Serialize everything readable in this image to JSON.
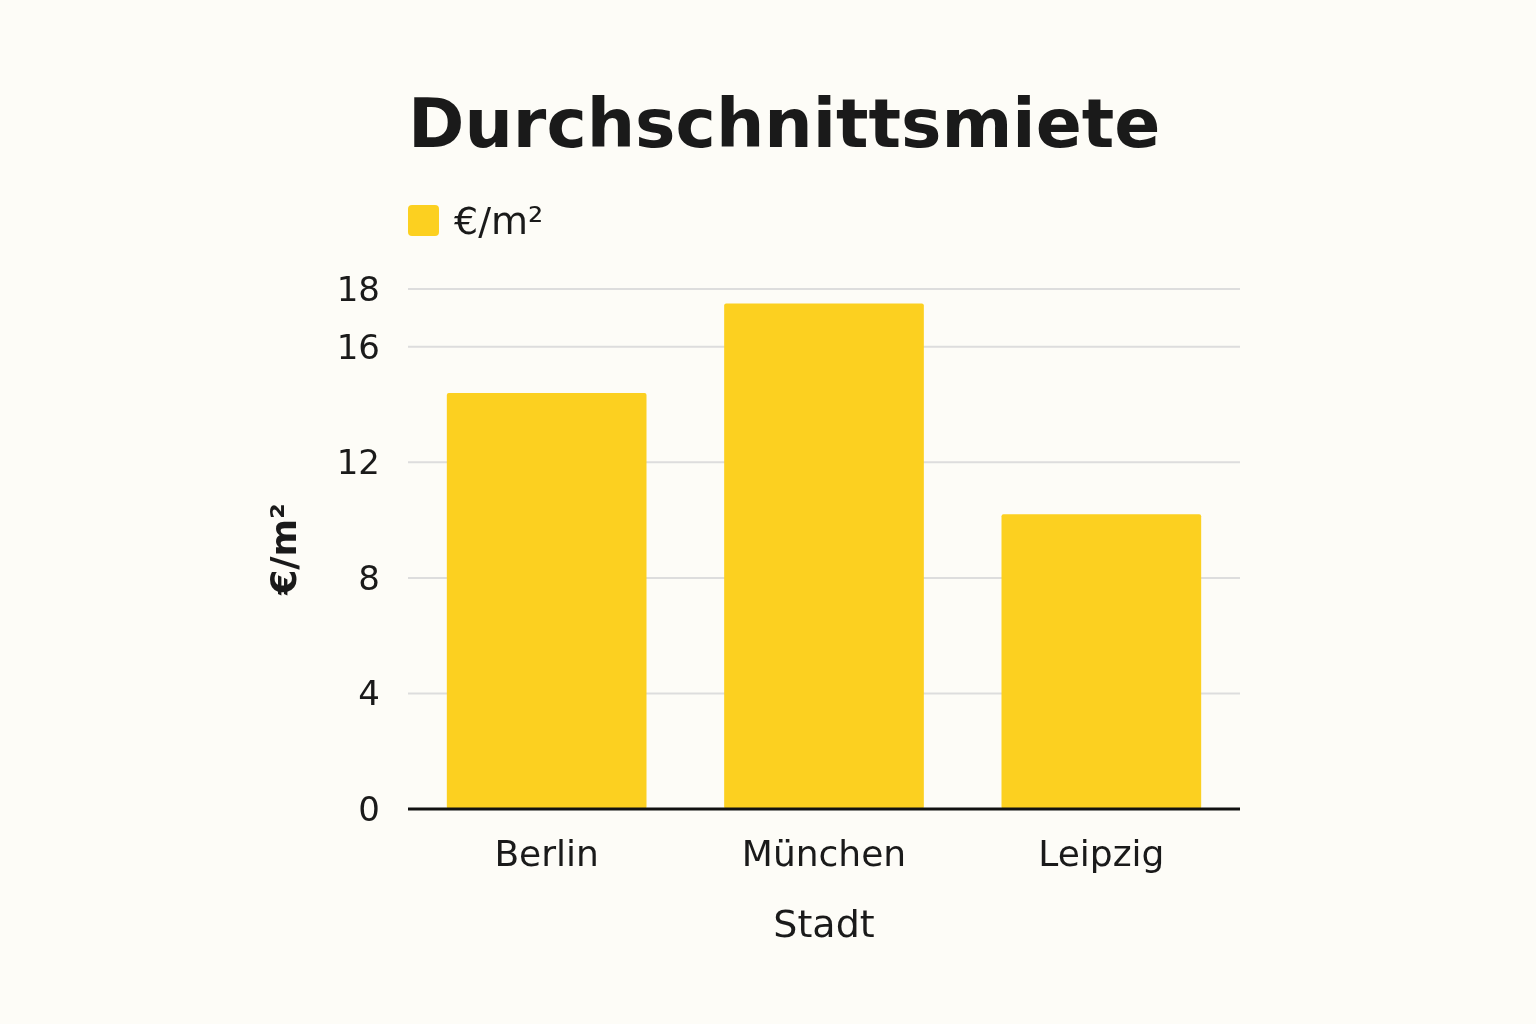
{
  "chart_data": {
    "type": "bar",
    "title": "Durchschnittsmiete",
    "xlabel": "Stadt",
    "ylabel": "€/m²",
    "categories": [
      "Berlin",
      "München",
      "Leipzig"
    ],
    "series": [
      {
        "name": "€/m²",
        "color": "#fcd020",
        "values": [
          14.4,
          17.5,
          10.2
        ]
      }
    ],
    "ylim": [
      0,
      18
    ],
    "yticks": [
      0,
      4,
      8,
      12,
      16,
      18
    ],
    "grid": "y",
    "legend": "top left"
  }
}
